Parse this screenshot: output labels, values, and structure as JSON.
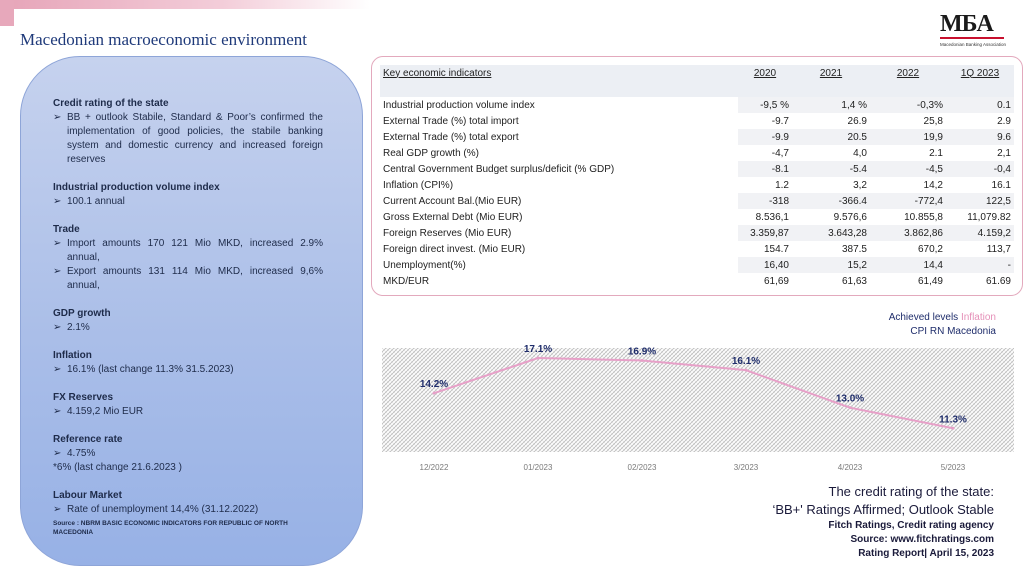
{
  "header": {
    "title": "Macedonian macroeconomic environment",
    "logo_text": "MБA",
    "logo_subtitle": "Macedonian Banking Association"
  },
  "left_panel": {
    "sections": [
      {
        "title": "Credit rating of the state",
        "bullets": [
          "BB + outlook Stabile, Standard & Poor’s confirmed the implementation of good policies, the stabile banking system and domestic currency and increased foreign reserves"
        ],
        "notes": []
      },
      {
        "title": "Industrial production volume index",
        "bullets": [
          "100.1 annual"
        ],
        "notes": []
      },
      {
        "title": "Trade",
        "bullets": [
          "Import amounts 170 121 Mio MKD, increased 2.9% annual,",
          "Export amounts 131 114 Mio MKD, increased 9,6% annual,"
        ],
        "notes": []
      },
      {
        "title": "GDP growth",
        "bullets": [
          "2.1%"
        ],
        "notes": []
      },
      {
        "title": "Inflation",
        "bullets": [
          "16.1% (last change 11.3% 31.5.2023)"
        ],
        "notes": []
      },
      {
        "title": "FX Reserves",
        "bullets": [
          "4.159,2 Mio EUR"
        ],
        "notes": []
      },
      {
        "title": "Reference rate",
        "bullets": [
          "4.75%"
        ],
        "notes": [
          "*6% (last change 21.6.2023 )"
        ]
      },
      {
        "title": "Labour Market",
        "bullets": [
          "Rate of unemployment 14,4% (31.12.2022)"
        ],
        "notes": []
      }
    ],
    "source": "Source : NBRM BASIC ECONOMIC INDICATORS FOR REPUBLIC OF NORTH MACEDONIA"
  },
  "indicators_table": {
    "header": [
      "Key economic indicators",
      "2020",
      "2021",
      "2022",
      "1Q 2023"
    ],
    "rows": [
      [
        "Industrial production volume index",
        "-9,5 %",
        "1,4 %",
        "-0,3%",
        "0.1"
      ],
      [
        "External Trade (%) total import",
        "-9.7",
        "26.9",
        "25,8",
        "2.9"
      ],
      [
        "External Trade (%) total export",
        "-9.9",
        "20.5",
        "19,9",
        "9.6"
      ],
      [
        "Real GDP growth (%)",
        "-4,7",
        "4,0",
        "2.1",
        "2,1"
      ],
      [
        "Central Government Budget surplus/deficit (% GDP)",
        "-8.1",
        "-5.4",
        "-4,5",
        "-0,4"
      ],
      [
        "Inflation (CPI%)",
        "1.2",
        "3,2",
        "14,2",
        "16.1"
      ],
      [
        "Current Account Bal.(Mio EUR)",
        "-318",
        "-366.4",
        "-772,4",
        "122,5"
      ],
      [
        "Gross External Debt (Mio EUR)",
        "8.536,1",
        "9.576,6",
        "10.855,8",
        "11,079.82"
      ],
      [
        "Foreign Reserves (Mio EUR)",
        "3.359,87",
        "3.643,28",
        "3.862,86",
        "4.159,2"
      ],
      [
        "Foreign direct invest. (Mio EUR)",
        "154.7",
        "387.5",
        "670,2",
        "113,7"
      ],
      [
        "Unemployment(%)",
        "16,40",
        "15,2",
        "14,4",
        "-"
      ],
      [
        "MKD/EUR",
        "61,69",
        "61,63",
        "61,49",
        "61.69"
      ]
    ]
  },
  "chart_legend": {
    "line1_prefix": "Achieved levels ",
    "line1_highlight": "Inflation",
    "line2": "CPI  RN Macedonia"
  },
  "chart_data": {
    "type": "line",
    "title": "",
    "xlabel": "",
    "ylabel": "",
    "categories": [
      "12/2022",
      "01/2023",
      "02/2023",
      "3/2023",
      "4/2023",
      "5/2023"
    ],
    "series": [
      {
        "name": "Inflation",
        "values": [
          14.2,
          17.1,
          16.9,
          16.1,
          13.0,
          11.3
        ],
        "labels": [
          "14.2%",
          "17.1%",
          "16.9%",
          "16.1%",
          "13.0%",
          "11.3%"
        ],
        "color": "#e7a0c8"
      }
    ],
    "ylim": [
      10,
      17.6
    ],
    "grid": false,
    "legend": "top-right"
  },
  "rating_note": {
    "line1": "The credit rating of the state:",
    "line2": "‘BB+' Ratings Affirmed; Outlook Stable",
    "line3": "Fitch Ratings, Credit rating agency",
    "line4": "Source: www.fitchratings.com",
    "line5": "Rating Report| April 15, 2023"
  },
  "colors": {
    "title_blue": "#1f3a7a",
    "accent_pink": "#e7a0c8",
    "panel_blue": "#aabee8",
    "logo_red": "#c8102e"
  }
}
